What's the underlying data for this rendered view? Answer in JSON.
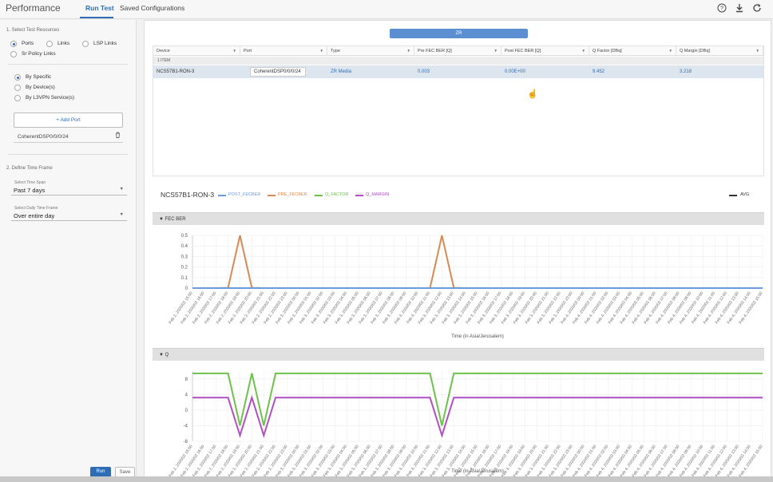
{
  "header": {
    "title": "Performance",
    "tabs": [
      {
        "label": "Run Test",
        "active": true
      },
      {
        "label": "Saved Configurations",
        "active": false
      }
    ],
    "icons": [
      "help-icon",
      "download-icon",
      "refresh-icon"
    ]
  },
  "left_panel": {
    "section1_title": "1. Select Test Resources",
    "resource_types": [
      {
        "label": "Ports",
        "selected": true
      },
      {
        "label": "Links",
        "selected": false
      },
      {
        "label": "LSP Links",
        "selected": false
      },
      {
        "label": "Sr Policy Links",
        "selected": false
      }
    ],
    "selection_modes": [
      {
        "label": "By Specific",
        "selected": true
      },
      {
        "label": "By Device(s)",
        "selected": false
      },
      {
        "label": "By L3VPN Service(s)",
        "selected": false
      }
    ],
    "add_port_label": "Add Port",
    "selected_port": "CoherentDSP0/0/0/24",
    "section2_title": "2. Define Time Frame",
    "time_span": {
      "label": "Select Time Span",
      "value": "Past 7 days"
    },
    "daily_time_frame": {
      "label": "Select Daily Time Frame",
      "value": "Over entire day"
    },
    "run_label": "Run",
    "save_label": "Save"
  },
  "results": {
    "group_label": "ZR",
    "columns": [
      "Device",
      "Port",
      "Type",
      "Pre FEC BER [Q]",
      "Post FEC BER [Q]",
      "Q Factor [DBq]",
      "Q Margin [DBq]"
    ],
    "item_count": "1 ITEM",
    "rows": [
      {
        "device": "NCS57B1-RON-3",
        "port": "CoherentDSP0/0/0/24",
        "type": "ZR Media",
        "pre_fec": "0.003",
        "post_fec": "0.00E+00",
        "q_factor": "9.452",
        "q_margin": "3.218"
      }
    ]
  },
  "chart_header": {
    "device": "NCS57B1-RON-3",
    "legend": [
      {
        "name": "POST_FECBER",
        "color": "#6b9bd8"
      },
      {
        "name": "PRE_FECBER",
        "color": "#d98a52"
      },
      {
        "name": "Q_FACTOR",
        "color": "#6cc24a"
      },
      {
        "name": "Q_MARGIN",
        "color": "#b04fc4"
      }
    ],
    "avg_label": "AVG"
  },
  "chart_data": [
    {
      "type": "line",
      "title": "FEC BER",
      "xlabel": "Time (in Asia/Jerusalem)",
      "ylabel": "",
      "ylim": [
        0,
        0.5
      ],
      "yticks": [
        "0.5",
        "0.4",
        "0.3",
        "0.2",
        "0.1",
        "0"
      ],
      "grid": true,
      "x": [
        "Feb 2, 2020/02 15:00",
        "Feb 2, 2020/02 16:00",
        "Feb 2, 2020/02 17:00",
        "Feb 2, 2020/02 18:00",
        "Feb 2, 2020/02 19:00",
        "Feb 2, 2020/02 20:00",
        "Feb 2, 2020/02 21:00",
        "Feb 2, 2020/02 22:00",
        "Feb 2, 2020/02 23:00",
        "Feb 3, 2020/02 00:00",
        "Feb 3, 2020/02 01:00",
        "Feb 3, 2020/02 02:00",
        "Feb 3, 2020/02 03:00",
        "Feb 3, 2020/02 04:00",
        "Feb 3, 2020/02 05:00",
        "Feb 3, 2020/02 06:00",
        "Feb 3, 2020/02 07:00",
        "Feb 3, 2020/02 08:00",
        "Feb 3, 2020/02 09:00",
        "Feb 3, 2020/02 10:00",
        "Feb 3, 2020/02 11:00",
        "Feb 3, 2020/02 12:00",
        "Feb 3, 2020/02 13:00",
        "Feb 3, 2020/02 14:00",
        "Feb 3, 2020/02 15:00",
        "Feb 3, 2020/02 16:00",
        "Feb 3, 2020/02 17:00",
        "Feb 3, 2020/02 18:00",
        "Feb 3, 2020/02 19:00",
        "Feb 3, 2020/02 20:00",
        "Feb 3, 2020/02 21:00",
        "Feb 3, 2020/02 22:00",
        "Feb 3, 2020/02 23:00",
        "Feb 4, 2020/02 00:00",
        "Feb 4, 2020/02 01:00",
        "Feb 4, 2020/02 02:00",
        "Feb 4, 2020/02 03:00",
        "Feb 4, 2020/02 04:00",
        "Feb 4, 2020/02 05:00",
        "Feb 4, 2020/02 06:00",
        "Feb 4, 2020/02 07:00",
        "Feb 4, 2020/02 08:00",
        "Feb 4, 2020/02 09:00",
        "Feb 4, 2020/02 10:00",
        "Feb 4, 2020/02 11:00",
        "Feb 4, 2020/02 12:00",
        "Feb 4, 2020/02 13:00",
        "Feb 4, 2020/02 14:00",
        "Feb 4, 2020/02 15:00"
      ],
      "series": [
        {
          "name": "PRE_FECBER",
          "color": "#d98a52",
          "values": [
            0,
            0,
            0,
            0.003,
            0.5,
            0.003,
            0,
            0,
            0,
            0,
            0,
            0,
            0,
            0,
            0,
            0,
            0,
            0,
            0,
            0,
            0,
            0.5,
            0.003,
            0,
            0,
            0,
            0,
            0,
            0,
            0,
            0,
            0,
            0,
            0,
            0,
            0,
            0,
            0,
            0,
            0,
            0,
            0,
            0,
            0,
            0,
            0,
            0,
            0,
            0
          ]
        },
        {
          "name": "POST_FECBER",
          "color": "#6b9bd8",
          "values": [
            0,
            0,
            0,
            0,
            0,
            0,
            0,
            0,
            0,
            0,
            0,
            0,
            0,
            0,
            0,
            0,
            0,
            0,
            0,
            0,
            0,
            0,
            0,
            0,
            0,
            0,
            0,
            0,
            0,
            0,
            0,
            0,
            0,
            0,
            0,
            0,
            0,
            0,
            0,
            0,
            0,
            0,
            0,
            0,
            0,
            0,
            0,
            0,
            0
          ]
        }
      ]
    },
    {
      "type": "line",
      "title": "Q",
      "xlabel": "Time (in Asia/Jerusalem)",
      "ylabel": "",
      "ylim": [
        -8,
        10
      ],
      "yticks": [
        "8",
        "4",
        "0",
        "-4",
        "-8"
      ],
      "grid": true,
      "x": [
        "Feb 2, 2020/02 15:00",
        "Feb 2, 2020/02 16:00",
        "Feb 2, 2020/02 17:00",
        "Feb 2, 2020/02 18:00",
        "Feb 2, 2020/02 19:00",
        "Feb 2, 2020/02 20:00",
        "Feb 2, 2020/02 21:00",
        "Feb 2, 2020/02 22:00",
        "Feb 2, 2020/02 23:00",
        "Feb 3, 2020/02 00:00",
        "Feb 3, 2020/02 01:00",
        "Feb 3, 2020/02 02:00",
        "Feb 3, 2020/02 03:00",
        "Feb 3, 2020/02 04:00",
        "Feb 3, 2020/02 05:00",
        "Feb 3, 2020/02 06:00",
        "Feb 3, 2020/02 07:00",
        "Feb 3, 2020/02 08:00",
        "Feb 3, 2020/02 09:00",
        "Feb 3, 2020/02 10:00",
        "Feb 3, 2020/02 11:00",
        "Feb 3, 2020/02 12:00",
        "Feb 3, 2020/02 13:00",
        "Feb 3, 2020/02 14:00",
        "Feb 3, 2020/02 15:00",
        "Feb 3, 2020/02 16:00",
        "Feb 3, 2020/02 17:00",
        "Feb 3, 2020/02 18:00",
        "Feb 3, 2020/02 19:00",
        "Feb 3, 2020/02 20:00",
        "Feb 3, 2020/02 21:00",
        "Feb 3, 2020/02 22:00",
        "Feb 3, 2020/02 23:00",
        "Feb 4, 2020/02 00:00",
        "Feb 4, 2020/02 01:00",
        "Feb 4, 2020/02 02:00",
        "Feb 4, 2020/02 03:00",
        "Feb 4, 2020/02 04:00",
        "Feb 4, 2020/02 05:00",
        "Feb 4, 2020/02 06:00",
        "Feb 4, 2020/02 07:00",
        "Feb 4, 2020/02 08:00",
        "Feb 4, 2020/02 09:00",
        "Feb 4, 2020/02 10:00",
        "Feb 4, 2020/02 11:00",
        "Feb 4, 2020/02 12:00",
        "Feb 4, 2020/02 13:00",
        "Feb 4, 2020/02 14:00",
        "Feb 4, 2020/02 15:00"
      ],
      "series": [
        {
          "name": "Q_FACTOR",
          "color": "#6cc24a",
          "values": [
            9.4,
            9.4,
            9.4,
            9.4,
            -4,
            9.4,
            -4,
            9.4,
            9.4,
            9.4,
            9.4,
            9.4,
            9.4,
            9.4,
            9.4,
            9.4,
            9.4,
            9.4,
            9.4,
            9.4,
            9.4,
            -4,
            9.4,
            9.4,
            9.4,
            9.4,
            9.4,
            9.4,
            9.4,
            9.4,
            9.4,
            9.4,
            9.4,
            9.4,
            9.4,
            9.4,
            9.4,
            9.4,
            9.4,
            9.4,
            9.4,
            9.4,
            9.4,
            9.4,
            9.4,
            9.4,
            9.4,
            9.4,
            9.4
          ]
        },
        {
          "name": "Q_MARGIN",
          "color": "#b04fc4",
          "values": [
            3.2,
            3.2,
            3.2,
            3.2,
            -6.5,
            3.2,
            -6.5,
            3.2,
            3.2,
            3.2,
            3.2,
            3.2,
            3.2,
            3.2,
            3.2,
            3.2,
            3.2,
            3.2,
            3.2,
            3.2,
            3.2,
            -6.5,
            3.2,
            3.2,
            3.2,
            3.2,
            3.2,
            3.2,
            3.2,
            3.2,
            3.2,
            3.2,
            3.2,
            3.2,
            3.2,
            3.2,
            3.2,
            3.2,
            3.2,
            3.2,
            3.2,
            3.2,
            3.2,
            3.2,
            3.2,
            3.2,
            3.2,
            3.2,
            3.2
          ]
        }
      ]
    }
  ]
}
